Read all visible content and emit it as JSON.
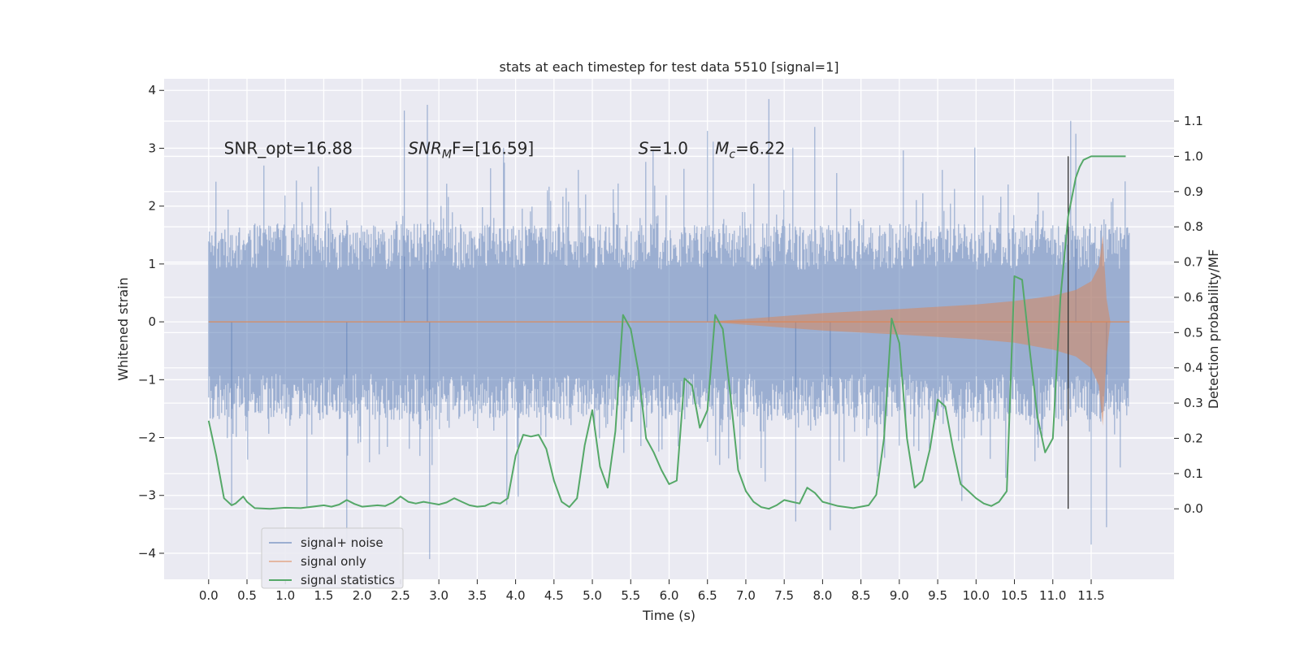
{
  "chart_data": {
    "type": "line",
    "title": "stats at each timestep for test data 5510 [signal=1]",
    "xlabel": "Time (s)",
    "ylabel": "Whitened strain",
    "y2label": "Detection probability/MF",
    "xlim": [
      -0.58,
      12.58
    ],
    "ylim": [
      -4.45,
      4.2
    ],
    "y2lim": [
      -0.2,
      1.22
    ],
    "xticks": [
      0.0,
      0.5,
      1.0,
      1.5,
      2.0,
      2.5,
      3.0,
      3.5,
      4.0,
      4.5,
      5.0,
      5.5,
      6.0,
      6.5,
      7.0,
      7.5,
      8.0,
      8.5,
      9.0,
      9.5,
      10.0,
      10.5,
      11.0,
      11.5
    ],
    "xtick_labels": [
      "0.0",
      "0.5",
      "1.0",
      "1.5",
      "2.0",
      "2.5",
      "3.0",
      "3.5",
      "4.0",
      "4.5",
      "5.0",
      "5.5",
      "6.0",
      "6.5",
      "7.0",
      "7.5",
      "8.0",
      "8.5",
      "9.0",
      "9.5",
      "10.0",
      "10.5",
      "11.0",
      "11.5"
    ],
    "yticks": [
      -4,
      -3,
      -2,
      -1,
      0,
      1,
      2,
      3,
      4
    ],
    "ytick_labels": [
      "−4",
      "−3",
      "−2",
      "−1",
      "0",
      "1",
      "2",
      "3",
      "4"
    ],
    "y2ticks": [
      0.0,
      0.1,
      0.2,
      0.3,
      0.4,
      0.5,
      0.6,
      0.7,
      0.8,
      0.9,
      1.0,
      1.1
    ],
    "y2tick_labels": [
      "0.0",
      "0.1",
      "0.2",
      "0.3",
      "0.4",
      "0.5",
      "0.6",
      "0.7",
      "0.8",
      "0.9",
      "1.0",
      "1.1"
    ],
    "grid": true,
    "legend_position": "lower-left",
    "annotations": [
      {
        "text": "SNR_opt=16.88",
        "x": 0.2,
        "y": 3.0
      },
      {
        "main": "SNR",
        "sub": "M",
        "tail": "F=[16.59]",
        "x": 2.6,
        "y": 3.0
      },
      {
        "main": "S",
        "tail": "=1.0",
        "x": 5.6,
        "y": 3.0
      },
      {
        "main": "M",
        "sub": "c",
        "tail": "=6.22",
        "x": 6.6,
        "y": 3.0
      }
    ],
    "vline": {
      "x": 11.2,
      "y2_from": 0.0,
      "y2_to": 1.0
    },
    "series": [
      {
        "name": "signal+ noise",
        "color": "#4c72b0",
        "opacity": 0.5,
        "axis": "left",
        "kind": "noise",
        "x_range": [
          0.0,
          12.0
        ],
        "core_sigma": 1.0,
        "extreme_points": [
          {
            "x": 0.3,
            "y": -3.15
          },
          {
            "x": 1.8,
            "y": -3.8
          },
          {
            "x": 2.55,
            "y": 3.65
          },
          {
            "x": 2.85,
            "y": 3.75
          },
          {
            "x": 2.88,
            "y": -4.1
          },
          {
            "x": 6.5,
            "y": 3.3
          },
          {
            "x": 7.3,
            "y": 3.85
          },
          {
            "x": 7.65,
            "y": -3.45
          },
          {
            "x": 8.1,
            "y": -3.6
          },
          {
            "x": 11.5,
            "y": -3.85
          },
          {
            "x": 11.3,
            "y": 3.25
          },
          {
            "x": 11.7,
            "y": -3.55
          }
        ]
      },
      {
        "name": "signal only",
        "color": "#dd8452",
        "opacity": 0.5,
        "axis": "left",
        "kind": "chirp",
        "x": [
          0.0,
          6.5,
          7.0,
          8.0,
          9.0,
          10.0,
          10.5,
          11.0,
          11.3,
          11.5,
          11.6,
          11.65,
          11.7,
          11.75,
          12.0
        ],
        "envelope_upper": [
          0.0,
          0.0,
          0.05,
          0.15,
          0.22,
          0.3,
          0.36,
          0.45,
          0.55,
          0.7,
          0.95,
          1.5,
          0.4,
          0.0,
          0.0
        ],
        "envelope_lower": [
          0.0,
          0.0,
          -0.05,
          -0.15,
          -0.22,
          -0.3,
          -0.36,
          -0.48,
          -0.6,
          -0.8,
          -1.1,
          -1.8,
          -0.6,
          0.0,
          0.0
        ]
      },
      {
        "name": "signal statistics",
        "color": "#55a868",
        "opacity": 1.0,
        "axis": "right",
        "kind": "line",
        "x": [
          0.0,
          0.1,
          0.2,
          0.3,
          0.35,
          0.45,
          0.5,
          0.6,
          0.8,
          1.0,
          1.2,
          1.5,
          1.6,
          1.7,
          1.8,
          1.9,
          2.0,
          2.2,
          2.3,
          2.4,
          2.5,
          2.6,
          2.7,
          2.8,
          2.9,
          3.0,
          3.1,
          3.2,
          3.3,
          3.4,
          3.5,
          3.6,
          3.7,
          3.8,
          3.9,
          4.0,
          4.1,
          4.2,
          4.3,
          4.4,
          4.5,
          4.6,
          4.7,
          4.8,
          4.9,
          5.0,
          5.1,
          5.2,
          5.3,
          5.4,
          5.5,
          5.6,
          5.7,
          5.8,
          5.9,
          6.0,
          6.1,
          6.2,
          6.3,
          6.4,
          6.5,
          6.6,
          6.7,
          6.8,
          6.9,
          7.0,
          7.1,
          7.2,
          7.3,
          7.4,
          7.5,
          7.6,
          7.7,
          7.8,
          7.9,
          8.0,
          8.2,
          8.4,
          8.6,
          8.7,
          8.8,
          8.9,
          9.0,
          9.1,
          9.2,
          9.3,
          9.4,
          9.5,
          9.6,
          9.7,
          9.8,
          9.9,
          10.0,
          10.1,
          10.2,
          10.3,
          10.4,
          10.5,
          10.6,
          10.7,
          10.8,
          10.9,
          11.0,
          11.1,
          11.2,
          11.3,
          11.35,
          11.4,
          11.5,
          11.6,
          11.8,
          11.95
        ],
        "y": [
          0.25,
          0.15,
          0.03,
          0.01,
          0.015,
          0.035,
          0.02,
          0.002,
          0.0,
          0.003,
          0.002,
          0.01,
          0.006,
          0.012,
          0.025,
          0.014,
          0.006,
          0.01,
          0.008,
          0.018,
          0.035,
          0.02,
          0.015,
          0.02,
          0.016,
          0.012,
          0.018,
          0.03,
          0.02,
          0.01,
          0.006,
          0.008,
          0.018,
          0.015,
          0.03,
          0.15,
          0.21,
          0.205,
          0.21,
          0.17,
          0.08,
          0.02,
          0.005,
          0.03,
          0.18,
          0.28,
          0.12,
          0.06,
          0.22,
          0.55,
          0.51,
          0.39,
          0.2,
          0.16,
          0.11,
          0.07,
          0.08,
          0.37,
          0.35,
          0.23,
          0.28,
          0.55,
          0.51,
          0.32,
          0.11,
          0.05,
          0.02,
          0.005,
          0.0,
          0.01,
          0.025,
          0.02,
          0.015,
          0.06,
          0.045,
          0.02,
          0.008,
          0.002,
          0.01,
          0.04,
          0.2,
          0.54,
          0.47,
          0.2,
          0.06,
          0.08,
          0.17,
          0.31,
          0.29,
          0.17,
          0.07,
          0.05,
          0.03,
          0.015,
          0.008,
          0.02,
          0.05,
          0.66,
          0.65,
          0.45,
          0.26,
          0.16,
          0.2,
          0.6,
          0.83,
          0.94,
          0.97,
          0.99,
          1.0,
          1.0,
          1.0,
          1.0
        ]
      }
    ]
  }
}
